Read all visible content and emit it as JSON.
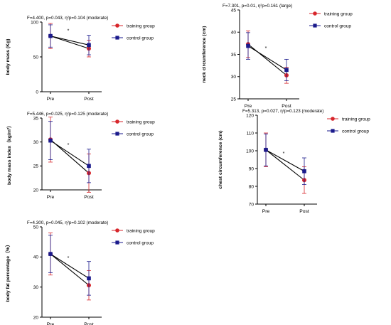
{
  "colors": {
    "training": "#d7262b",
    "control": "#1a1a8c"
  },
  "chart_data": [
    {
      "type": "line",
      "stats": "F=4.400, p=0.043, η²p=0.104 (moderate)",
      "ylabel": "body mass (Kg)",
      "categories": [
        "Pre",
        "Post"
      ],
      "ylim": [
        0,
        100
      ],
      "yticks": [
        "0",
        "50",
        "100"
      ],
      "sig_marker": "*",
      "legend": [
        "training group",
        "control group"
      ],
      "series": [
        {
          "name": "training group",
          "values": [
            80,
            62
          ],
          "err": [
            18,
            12
          ]
        },
        {
          "name": "control group",
          "values": [
            80,
            67
          ],
          "err": [
            16,
            14
          ]
        }
      ]
    },
    {
      "type": "line",
      "stats": "F=7.301, p=0.01, η²p=0.161 (large)",
      "ylabel": "neck circumference (cm)",
      "categories": [
        "Pre",
        "Post"
      ],
      "ylim": [
        25,
        45
      ],
      "yticks": [
        "25",
        "30",
        "35",
        "40",
        "45"
      ],
      "sig_marker": "*",
      "legend": [
        "training group",
        "control group"
      ],
      "series": [
        {
          "name": "training group",
          "values": [
            37.3,
            30.3
          ],
          "err": [
            3.0,
            1.8
          ]
        },
        {
          "name": "control group",
          "values": [
            36.9,
            31.5
          ],
          "err": [
            3.0,
            2.4
          ]
        }
      ]
    },
    {
      "type": "line",
      "stats": "F=5.446, p=0.025, η²p=0.125 (moderate)",
      "ylabel": "body mass index（kg/m²）",
      "categories": [
        "Pre",
        "Post"
      ],
      "ylim": [
        20,
        35
      ],
      "yticks": [
        "20",
        "25",
        "30",
        "35"
      ],
      "sig_marker": "*",
      "legend": [
        "training group",
        "control group"
      ],
      "series": [
        {
          "name": "training group",
          "values": [
            30.5,
            23.5
          ],
          "err": [
            4.7,
            4.0
          ]
        },
        {
          "name": "control group",
          "values": [
            30.3,
            25.0
          ],
          "err": [
            4.0,
            3.5
          ]
        }
      ]
    },
    {
      "type": "line",
      "stats": "F=5.313, p=0.027, η²p=0.123 (moderate)",
      "ylabel": "chest circumference (cm)",
      "categories": [
        "Pre",
        "Post"
      ],
      "ylim": [
        70,
        120
      ],
      "yticks": [
        "70",
        "80",
        "90",
        "100",
        "110",
        "120"
      ],
      "sig_marker": "*",
      "legend": [
        "training group",
        "control group"
      ],
      "series": [
        {
          "name": "training group",
          "values": [
            100.5,
            83.5
          ],
          "err": [
            9.5,
            7.5
          ]
        },
        {
          "name": "control group",
          "values": [
            100.5,
            88.5
          ],
          "err": [
            9.0,
            7.5
          ]
        }
      ]
    },
    {
      "type": "line",
      "stats": "F=4.300, p=0.045, η²p=0.102 (moderate)",
      "ylabel": "body fat percentage（%）",
      "categories": [
        "Pre",
        "Post"
      ],
      "ylim": [
        20,
        50
      ],
      "yticks": [
        "20",
        "30",
        "40",
        "50"
      ],
      "sig_marker": "*",
      "legend": [
        "training group",
        "control group"
      ],
      "series": [
        {
          "name": "training group",
          "values": [
            41,
            30.6
          ],
          "err": [
            7,
            4.9
          ]
        },
        {
          "name": "control group",
          "values": [
            41,
            32.9
          ],
          "err": [
            6.2,
            5.6
          ]
        }
      ]
    }
  ]
}
